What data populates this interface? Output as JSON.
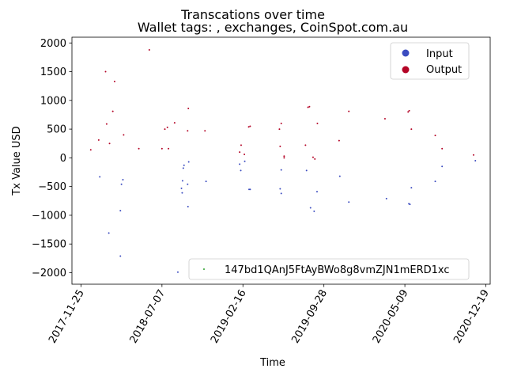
{
  "chart_data": {
    "type": "scatter",
    "title": "Transcations over time",
    "subtitle": "Wallet tags: , exchanges, CoinSpot.com.au",
    "xlabel": "Time",
    "ylabel": "Tx Value USD",
    "xlim": [
      "2017-10-31",
      "2020-12-31"
    ],
    "ylim": [
      -2200,
      2100
    ],
    "x_ticks": [
      "2017-11-25",
      "2018-07-07",
      "2019-02-16",
      "2019-09-28",
      "2020-05-09",
      "2020-12-19"
    ],
    "y_ticks": [
      -2000,
      -1500,
      -1000,
      -500,
      0,
      500,
      1000,
      1500,
      2000
    ],
    "grid": false,
    "legends": [
      {
        "placement": "top-right",
        "entries": [
          {
            "label": "Input",
            "color": "#3b4cc0"
          },
          {
            "label": "Output",
            "color": "#b40426"
          }
        ]
      },
      {
        "placement": "lower-right",
        "entries": [
          {
            "label": "147bd1QAnJ5FtAyBWo8g8vmZJN1mERD1xc",
            "color": "#2ca02c"
          }
        ]
      }
    ],
    "series": [
      {
        "name": "Input",
        "color": "#3b4cc0",
        "points": [
          {
            "x": "2018-01-16",
            "y": -330
          },
          {
            "x": "2018-02-10",
            "y": -1310
          },
          {
            "x": "2018-03-14",
            "y": -1710
          },
          {
            "x": "2018-03-14",
            "y": -920
          },
          {
            "x": "2018-03-17",
            "y": -460
          },
          {
            "x": "2018-03-21",
            "y": -380
          },
          {
            "x": "2018-08-20",
            "y": -1990
          },
          {
            "x": "2018-08-30",
            "y": -530
          },
          {
            "x": "2018-09-01",
            "y": -610
          },
          {
            "x": "2018-09-02",
            "y": -400
          },
          {
            "x": "2018-09-04",
            "y": -180
          },
          {
            "x": "2018-09-06",
            "y": -130
          },
          {
            "x": "2018-09-16",
            "y": -460
          },
          {
            "x": "2018-09-17",
            "y": -850
          },
          {
            "x": "2018-09-19",
            "y": -70
          },
          {
            "x": "2018-11-06",
            "y": -410
          },
          {
            "x": "2019-02-07",
            "y": -110
          },
          {
            "x": "2019-02-10",
            "y": -220
          },
          {
            "x": "2019-02-21",
            "y": -60
          },
          {
            "x": "2019-03-05",
            "y": -550
          },
          {
            "x": "2019-03-08",
            "y": -550
          },
          {
            "x": "2019-05-30",
            "y": -540
          },
          {
            "x": "2019-06-02",
            "y": -620
          },
          {
            "x": "2019-06-02",
            "y": -210
          },
          {
            "x": "2019-08-11",
            "y": -220
          },
          {
            "x": "2019-08-22",
            "y": -870
          },
          {
            "x": "2019-09-01",
            "y": -930
          },
          {
            "x": "2019-09-09",
            "y": -590
          },
          {
            "x": "2019-11-11",
            "y": -320
          },
          {
            "x": "2019-12-06",
            "y": -770
          },
          {
            "x": "2020-03-19",
            "y": -710
          },
          {
            "x": "2020-05-20",
            "y": -800
          },
          {
            "x": "2020-05-23",
            "y": -810
          },
          {
            "x": "2020-05-27",
            "y": -520
          },
          {
            "x": "2020-08-01",
            "y": -410
          },
          {
            "x": "2020-08-20",
            "y": -150
          },
          {
            "x": "2020-11-20",
            "y": -50
          }
        ]
      },
      {
        "name": "Output",
        "color": "#b40426",
        "points": [
          {
            "x": "2017-12-22",
            "y": 140
          },
          {
            "x": "2018-01-13",
            "y": 310
          },
          {
            "x": "2018-02-01",
            "y": 1500
          },
          {
            "x": "2018-02-04",
            "y": 590
          },
          {
            "x": "2018-02-12",
            "y": 250
          },
          {
            "x": "2018-02-21",
            "y": 810
          },
          {
            "x": "2018-02-26",
            "y": 1330
          },
          {
            "x": "2018-03-23",
            "y": 400
          },
          {
            "x": "2018-05-04",
            "y": 160
          },
          {
            "x": "2018-06-02",
            "y": 1880
          },
          {
            "x": "2018-07-07",
            "y": 160
          },
          {
            "x": "2018-07-15",
            "y": 500
          },
          {
            "x": "2018-07-22",
            "y": 530
          },
          {
            "x": "2018-07-25",
            "y": 160
          },
          {
            "x": "2018-08-11",
            "y": 610
          },
          {
            "x": "2018-09-16",
            "y": 470
          },
          {
            "x": "2018-09-18",
            "y": 860
          },
          {
            "x": "2018-11-03",
            "y": 470
          },
          {
            "x": "2019-02-07",
            "y": 100
          },
          {
            "x": "2019-02-11",
            "y": 220
          },
          {
            "x": "2019-02-20",
            "y": 60
          },
          {
            "x": "2019-03-04",
            "y": 540
          },
          {
            "x": "2019-03-08",
            "y": 550
          },
          {
            "x": "2019-05-28",
            "y": 500
          },
          {
            "x": "2019-05-30",
            "y": 200
          },
          {
            "x": "2019-06-02",
            "y": 600
          },
          {
            "x": "2019-06-10",
            "y": 0
          },
          {
            "x": "2019-06-10",
            "y": 30
          },
          {
            "x": "2019-08-08",
            "y": 220
          },
          {
            "x": "2019-08-15",
            "y": 880
          },
          {
            "x": "2019-08-19",
            "y": 890
          },
          {
            "x": "2019-08-29",
            "y": 10
          },
          {
            "x": "2019-09-03",
            "y": -20
          },
          {
            "x": "2019-09-10",
            "y": 600
          },
          {
            "x": "2019-11-09",
            "y": 300
          },
          {
            "x": "2019-12-06",
            "y": 810
          },
          {
            "x": "2020-03-15",
            "y": 680
          },
          {
            "x": "2020-05-18",
            "y": 800
          },
          {
            "x": "2020-05-21",
            "y": 820
          },
          {
            "x": "2020-05-27",
            "y": 500
          },
          {
            "x": "2020-08-01",
            "y": 390
          },
          {
            "x": "2020-08-20",
            "y": 160
          },
          {
            "x": "2020-11-15",
            "y": 50
          }
        ]
      }
    ]
  }
}
